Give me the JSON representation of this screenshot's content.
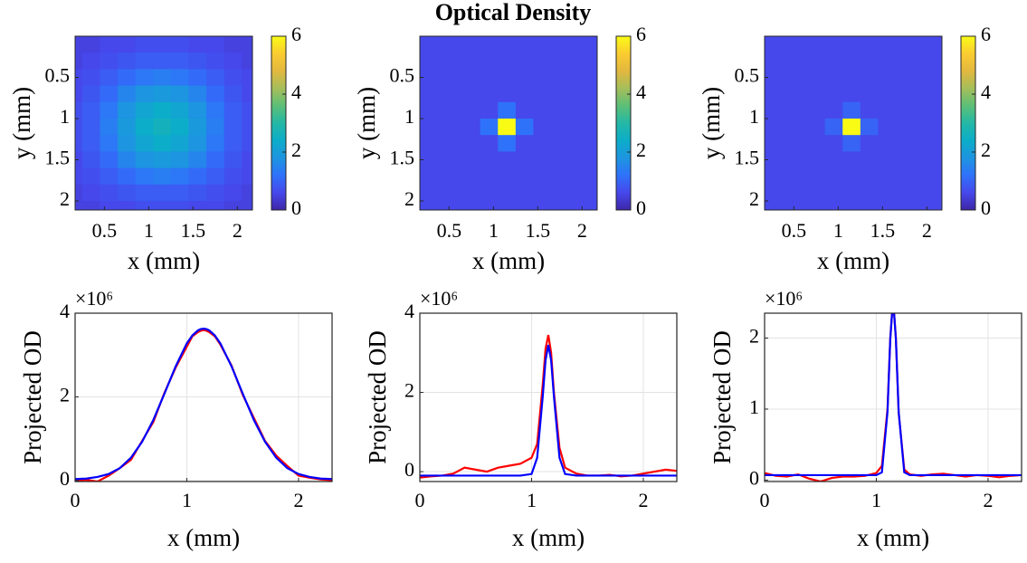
{
  "title": "Optical Density",
  "chart_data": [
    {
      "type": "heatmap",
      "xlabel": "x (mm)",
      "ylabel": "y (mm)",
      "x": [
        0.15,
        0.35,
        0.55,
        0.75,
        0.95,
        1.15,
        1.35,
        1.55,
        1.75,
        1.95,
        2.15
      ],
      "y": [
        0.1,
        0.3,
        0.5,
        0.7,
        0.9,
        1.1,
        1.3,
        1.5,
        1.7,
        1.9,
        2.1
      ],
      "z": [
        [
          0.5,
          0.5,
          0.6,
          0.6,
          0.7,
          0.7,
          0.7,
          0.6,
          0.6,
          0.5,
          0.5
        ],
        [
          0.5,
          0.6,
          0.7,
          0.8,
          0.9,
          0.9,
          0.9,
          0.8,
          0.7,
          0.6,
          0.5
        ],
        [
          0.6,
          0.7,
          0.9,
          1.1,
          1.3,
          1.4,
          1.3,
          1.1,
          0.9,
          0.7,
          0.6
        ],
        [
          0.6,
          0.8,
          1.1,
          1.5,
          1.8,
          1.9,
          1.8,
          1.5,
          1.1,
          0.8,
          0.6
        ],
        [
          0.7,
          0.9,
          1.3,
          1.8,
          2.2,
          2.4,
          2.2,
          1.8,
          1.3,
          0.9,
          0.7
        ],
        [
          0.7,
          0.9,
          1.4,
          1.9,
          2.4,
          2.6,
          2.4,
          1.9,
          1.4,
          0.9,
          0.7
        ],
        [
          0.7,
          0.9,
          1.3,
          1.8,
          2.2,
          2.4,
          2.2,
          1.8,
          1.3,
          0.9,
          0.7
        ],
        [
          0.6,
          0.8,
          1.1,
          1.5,
          1.8,
          1.9,
          1.8,
          1.5,
          1.1,
          0.8,
          0.6
        ],
        [
          0.6,
          0.7,
          0.9,
          1.1,
          1.3,
          1.4,
          1.3,
          1.1,
          0.9,
          0.7,
          0.6
        ],
        [
          0.5,
          0.6,
          0.7,
          0.8,
          0.9,
          0.9,
          0.9,
          0.8,
          0.7,
          0.6,
          0.5
        ],
        [
          0.5,
          0.5,
          0.6,
          0.6,
          0.7,
          0.7,
          0.7,
          0.6,
          0.6,
          0.5,
          0.5
        ]
      ],
      "xlim": [
        0.17,
        2.17
      ],
      "ylim": [
        0,
        2.11
      ],
      "y_reversed": true,
      "xticks": [
        0.5,
        1,
        1.5,
        2
      ],
      "yticks": [
        0.5,
        1,
        1.5,
        2
      ],
      "clim": [
        0,
        6
      ],
      "cticks": [
        0,
        2,
        4,
        6
      ],
      "colormap": [
        "#3e26a8",
        "#4648eb",
        "#2f72fa",
        "#1d95e0",
        "#0cadc9",
        "#24b8a6",
        "#5cbf77",
        "#a5be5a",
        "#e2b83f",
        "#fbcc31",
        "#f9fb15"
      ]
    },
    {
      "type": "heatmap",
      "xlabel": "x (mm)",
      "ylabel": "y (mm)",
      "x": [
        0.15,
        0.35,
        0.55,
        0.75,
        0.95,
        1.15,
        1.35,
        1.55,
        1.75,
        1.95,
        2.15
      ],
      "y": [
        0.1,
        0.3,
        0.5,
        0.7,
        0.9,
        1.1,
        1.3,
        1.5,
        1.7,
        1.9,
        2.1
      ],
      "z": [
        [
          0.6,
          0.6,
          0.6,
          0.6,
          0.6,
          0.6,
          0.6,
          0.6,
          0.6,
          0.6,
          0.6
        ],
        [
          0.6,
          0.6,
          0.6,
          0.6,
          0.6,
          0.6,
          0.6,
          0.6,
          0.6,
          0.6,
          0.6
        ],
        [
          0.6,
          0.6,
          0.6,
          0.6,
          0.6,
          0.6,
          0.6,
          0.6,
          0.6,
          0.6,
          0.6
        ],
        [
          0.6,
          0.6,
          0.6,
          0.6,
          0.6,
          0.6,
          0.6,
          0.6,
          0.6,
          0.6,
          0.6
        ],
        [
          0.6,
          0.6,
          0.6,
          0.6,
          0.6,
          1.2,
          0.6,
          0.6,
          0.6,
          0.6,
          0.6
        ],
        [
          0.6,
          0.6,
          0.6,
          0.6,
          1.2,
          6,
          1.2,
          0.6,
          0.6,
          0.6,
          0.6
        ],
        [
          0.6,
          0.6,
          0.6,
          0.6,
          0.6,
          1.2,
          0.6,
          0.6,
          0.6,
          0.6,
          0.6
        ],
        [
          0.6,
          0.6,
          0.6,
          0.6,
          0.6,
          0.6,
          0.6,
          0.6,
          0.6,
          0.6,
          0.6
        ],
        [
          0.6,
          0.6,
          0.6,
          0.6,
          0.6,
          0.6,
          0.6,
          0.6,
          0.6,
          0.6,
          0.6
        ],
        [
          0.6,
          0.6,
          0.6,
          0.6,
          0.6,
          0.6,
          0.6,
          0.6,
          0.6,
          0.6,
          0.6
        ],
        [
          0.6,
          0.6,
          0.6,
          0.6,
          0.6,
          0.6,
          0.6,
          0.6,
          0.6,
          0.6,
          0.6
        ]
      ],
      "xlim": [
        0.17,
        2.17
      ],
      "ylim": [
        0,
        2.11
      ],
      "y_reversed": true,
      "xticks": [
        0.5,
        1,
        1.5,
        2
      ],
      "yticks": [
        0.5,
        1,
        1.5,
        2
      ],
      "clim": [
        0,
        6
      ],
      "cticks": [
        0,
        2,
        4,
        6
      ],
      "colormap": [
        "#3e26a8",
        "#4648eb",
        "#2f72fa",
        "#1d95e0",
        "#0cadc9",
        "#24b8a6",
        "#5cbf77",
        "#a5be5a",
        "#e2b83f",
        "#fbcc31",
        "#f9fb15"
      ]
    },
    {
      "type": "heatmap",
      "xlabel": "x (mm)",
      "ylabel": "y (mm)",
      "x": [
        0.15,
        0.35,
        0.55,
        0.75,
        0.95,
        1.15,
        1.35,
        1.55,
        1.75,
        1.95,
        2.15
      ],
      "y": [
        0.1,
        0.3,
        0.5,
        0.7,
        0.9,
        1.1,
        1.3,
        1.5,
        1.7,
        1.9,
        2.1
      ],
      "z": [
        [
          0.6,
          0.6,
          0.6,
          0.6,
          0.6,
          0.6,
          0.6,
          0.6,
          0.6,
          0.6,
          0.6
        ],
        [
          0.6,
          0.6,
          0.6,
          0.6,
          0.6,
          0.6,
          0.6,
          0.6,
          0.6,
          0.6,
          0.6
        ],
        [
          0.6,
          0.6,
          0.6,
          0.6,
          0.6,
          0.6,
          0.6,
          0.6,
          0.6,
          0.6,
          0.6
        ],
        [
          0.6,
          0.6,
          0.6,
          0.6,
          0.6,
          0.6,
          0.6,
          0.6,
          0.6,
          0.6,
          0.6
        ],
        [
          0.6,
          0.6,
          0.6,
          0.6,
          0.6,
          1.0,
          0.6,
          0.6,
          0.6,
          0.6,
          0.6
        ],
        [
          0.6,
          0.6,
          0.6,
          0.6,
          1.0,
          6,
          1.0,
          0.6,
          0.6,
          0.6,
          0.6
        ],
        [
          0.6,
          0.6,
          0.6,
          0.6,
          0.6,
          1.0,
          0.6,
          0.6,
          0.6,
          0.6,
          0.6
        ],
        [
          0.6,
          0.6,
          0.6,
          0.6,
          0.6,
          0.6,
          0.6,
          0.6,
          0.6,
          0.6,
          0.6
        ],
        [
          0.6,
          0.6,
          0.6,
          0.6,
          0.6,
          0.6,
          0.6,
          0.6,
          0.6,
          0.6,
          0.6
        ],
        [
          0.6,
          0.6,
          0.6,
          0.6,
          0.6,
          0.6,
          0.6,
          0.6,
          0.6,
          0.6,
          0.6
        ],
        [
          0.6,
          0.6,
          0.6,
          0.6,
          0.6,
          0.6,
          0.6,
          0.6,
          0.6,
          0.6,
          0.6
        ]
      ],
      "xlim": [
        0.17,
        2.17
      ],
      "ylim": [
        0,
        2.11
      ],
      "y_reversed": true,
      "xticks": [
        0.5,
        1,
        1.5,
        2
      ],
      "yticks": [
        0.5,
        1,
        1.5,
        2
      ],
      "clim": [
        0,
        6
      ],
      "cticks": [
        0,
        2,
        4,
        6
      ],
      "colormap": [
        "#3e26a8",
        "#4648eb",
        "#2f72fa",
        "#1d95e0",
        "#0cadc9",
        "#24b8a6",
        "#5cbf77",
        "#a5be5a",
        "#e2b83f",
        "#fbcc31",
        "#f9fb15"
      ]
    },
    {
      "type": "line",
      "xlabel": "x (mm)",
      "ylabel": "Projected OD",
      "y_exponent": "×10⁶",
      "grid": true,
      "x": [
        0,
        0.1,
        0.2,
        0.3,
        0.4,
        0.5,
        0.6,
        0.7,
        0.8,
        0.9,
        1.0,
        1.05,
        1.1,
        1.125,
        1.15,
        1.175,
        1.2,
        1.25,
        1.3,
        1.4,
        1.5,
        1.6,
        1.7,
        1.8,
        1.9,
        2.0,
        2.1,
        2.2,
        2.3
      ],
      "series": [
        {
          "color": "#ff0000",
          "values": [
            0.0,
            0.02,
            -0.02,
            0.12,
            0.3,
            0.5,
            0.95,
            1.4,
            2.1,
            2.7,
            3.2,
            3.45,
            3.55,
            3.58,
            3.6,
            3.58,
            3.55,
            3.45,
            3.25,
            2.75,
            2.05,
            1.5,
            0.95,
            0.6,
            0.35,
            0.12,
            0.07,
            0.03,
            0.01
          ]
        },
        {
          "color": "#0000ff",
          "values": [
            0.04,
            0.05,
            0.09,
            0.16,
            0.3,
            0.55,
            0.93,
            1.45,
            2.08,
            2.73,
            3.28,
            3.47,
            3.59,
            3.62,
            3.63,
            3.62,
            3.59,
            3.47,
            3.28,
            2.73,
            2.08,
            1.45,
            0.93,
            0.55,
            0.3,
            0.16,
            0.09,
            0.05,
            0.04
          ]
        }
      ],
      "xlim": [
        0,
        2.3
      ],
      "ylim": [
        -0.02,
        4
      ],
      "xticks": [
        0,
        1,
        2
      ],
      "yticks": [
        0,
        2,
        4
      ]
    },
    {
      "type": "line",
      "xlabel": "x (mm)",
      "ylabel": "Projected OD",
      "y_exponent": "×10⁶",
      "grid": true,
      "x": [
        0,
        0.1,
        0.2,
        0.3,
        0.4,
        0.5,
        0.6,
        0.7,
        0.8,
        0.9,
        1.0,
        1.05,
        1.1,
        1.125,
        1.15,
        1.175,
        1.2,
        1.25,
        1.3,
        1.4,
        1.5,
        1.6,
        1.7,
        1.8,
        1.9,
        2.0,
        2.1,
        2.2,
        2.3
      ],
      "series": [
        {
          "color": "#ff0000",
          "values": [
            -0.15,
            -0.12,
            -0.1,
            -0.05,
            0.1,
            0.05,
            0.0,
            0.1,
            0.15,
            0.2,
            0.35,
            0.7,
            2.2,
            3.1,
            3.45,
            3.0,
            2.0,
            0.6,
            0.1,
            -0.05,
            -0.1,
            -0.1,
            -0.08,
            -0.12,
            -0.1,
            -0.05,
            0.0,
            0.05,
            0.02
          ]
        },
        {
          "color": "#0000ff",
          "values": [
            -0.1,
            -0.1,
            -0.1,
            -0.1,
            -0.1,
            -0.1,
            -0.1,
            -0.1,
            -0.1,
            -0.1,
            -0.06,
            0.35,
            1.9,
            2.81,
            3.2,
            2.81,
            1.9,
            0.35,
            -0.06,
            -0.1,
            -0.1,
            -0.1,
            -0.1,
            -0.1,
            -0.1,
            -0.1,
            -0.1,
            -0.1,
            -0.1
          ]
        }
      ],
      "xlim": [
        0,
        2.3
      ],
      "ylim": [
        -0.25,
        4
      ],
      "xticks": [
        0,
        1,
        2
      ],
      "yticks": [
        0,
        2,
        4
      ]
    },
    {
      "type": "line",
      "xlabel": "x (mm)",
      "ylabel": "Projected OD",
      "y_exponent": "×10⁶",
      "grid": true,
      "x": [
        0,
        0.1,
        0.2,
        0.3,
        0.4,
        0.5,
        0.6,
        0.7,
        0.8,
        0.9,
        1.0,
        1.05,
        1.1,
        1.125,
        1.15,
        1.175,
        1.2,
        1.25,
        1.3,
        1.4,
        1.5,
        1.6,
        1.7,
        1.8,
        1.9,
        2.0,
        2.1,
        2.2,
        2.3
      ],
      "series": [
        {
          "color": "#ff0000",
          "values": [
            0.1,
            0.06,
            0.05,
            0.08,
            0.02,
            -0.02,
            0.03,
            0.05,
            0.05,
            0.06,
            0.1,
            0.2,
            1.0,
            2.0,
            2.55,
            2.0,
            0.95,
            0.15,
            0.08,
            0.06,
            0.08,
            0.09,
            0.07,
            0.05,
            0.07,
            0.06,
            0.04,
            0.06,
            0.07
          ]
        },
        {
          "color": "#0000ff",
          "values": [
            0.07,
            0.07,
            0.07,
            0.07,
            0.07,
            0.07,
            0.07,
            0.07,
            0.07,
            0.07,
            0.07,
            0.11,
            0.96,
            1.99,
            2.55,
            1.99,
            0.96,
            0.11,
            0.07,
            0.07,
            0.07,
            0.07,
            0.07,
            0.07,
            0.07,
            0.07,
            0.07,
            0.07,
            0.07
          ]
        }
      ],
      "xlim": [
        0,
        2.3
      ],
      "ylim": [
        -0.02,
        2.35
      ],
      "xticks": [
        0,
        1,
        2
      ],
      "yticks": [
        0,
        1,
        2
      ]
    }
  ]
}
